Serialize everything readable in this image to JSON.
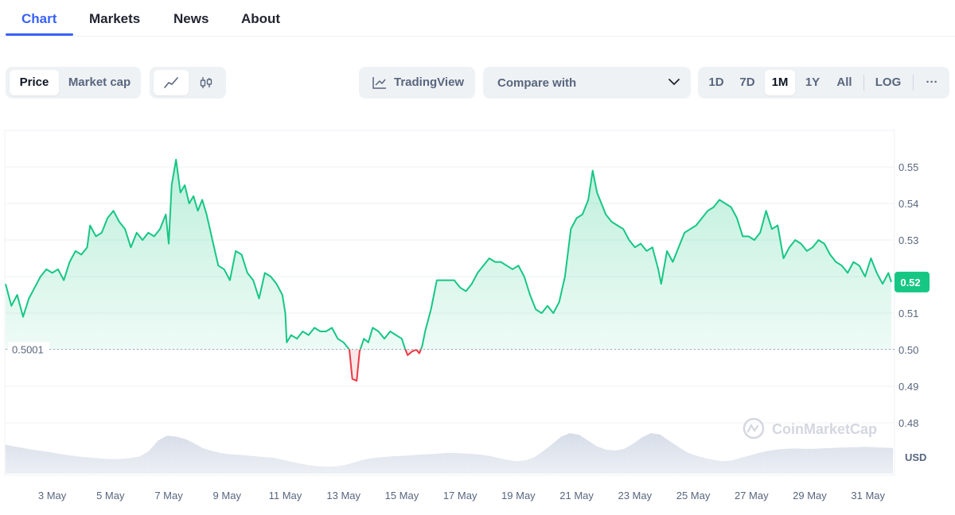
{
  "tabs": [
    {
      "label": "Chart",
      "active": true
    },
    {
      "label": "Markets",
      "active": false
    },
    {
      "label": "News",
      "active": false
    },
    {
      "label": "About",
      "active": false
    }
  ],
  "toolbar": {
    "metric_options": [
      "Price",
      "Market cap"
    ],
    "metric_selected": "Price",
    "chart_type_icons": [
      "line-chart-icon",
      "candlestick-icon"
    ],
    "chart_type_selected": "line-chart-icon",
    "tradingview_label": "TradingView",
    "compare_label": "Compare with",
    "ranges": [
      "1D",
      "7D",
      "1M",
      "1Y",
      "All"
    ],
    "range_selected": "1M",
    "log_label": "LOG",
    "more_label": "···"
  },
  "watermark": "CoinMarketCap",
  "colors": {
    "accent": "#3861fb",
    "up": "#16c784",
    "down": "#ea3943",
    "baseline": "#a1a7bb"
  },
  "chart_data": {
    "type": "area",
    "currency": "USD",
    "baseline_value": 0.5001,
    "baseline_label": "0.5001",
    "current_price_label": "0.52",
    "current_price": 0.5185,
    "ylim": [
      0.475,
      0.56
    ],
    "y_ticks": [
      "0.55",
      "0.54",
      "0.53",
      "0.52",
      "0.51",
      "0.50",
      "0.49",
      "0.48"
    ],
    "x_ticks": [
      "3 May",
      "5 May",
      "7 May",
      "9 May",
      "11 May",
      "13 May",
      "15 May",
      "17 May",
      "19 May",
      "21 May",
      "23 May",
      "25 May",
      "27 May",
      "29 May",
      "31 May"
    ],
    "x_range_days": [
      1.4,
      31.8
    ],
    "series": [
      {
        "values": [
          [
            1.4,
            0.518
          ],
          [
            1.6,
            0.512
          ],
          [
            1.8,
            0.515
          ],
          [
            2.0,
            0.509
          ],
          [
            2.2,
            0.514
          ],
          [
            2.4,
            0.517
          ],
          [
            2.6,
            0.52
          ],
          [
            2.8,
            0.522
          ],
          [
            3.0,
            0.521
          ],
          [
            3.2,
            0.522
          ],
          [
            3.4,
            0.519
          ],
          [
            3.6,
            0.524
          ],
          [
            3.8,
            0.527
          ],
          [
            4.0,
            0.526
          ],
          [
            4.2,
            0.528
          ],
          [
            4.3,
            0.534
          ],
          [
            4.5,
            0.531
          ],
          [
            4.7,
            0.532
          ],
          [
            4.9,
            0.536
          ],
          [
            5.1,
            0.538
          ],
          [
            5.3,
            0.535
          ],
          [
            5.5,
            0.533
          ],
          [
            5.7,
            0.528
          ],
          [
            5.9,
            0.532
          ],
          [
            6.1,
            0.53
          ],
          [
            6.3,
            0.532
          ],
          [
            6.5,
            0.531
          ],
          [
            6.7,
            0.533
          ],
          [
            6.9,
            0.537
          ],
          [
            7.0,
            0.529
          ],
          [
            7.1,
            0.545
          ],
          [
            7.25,
            0.552
          ],
          [
            7.4,
            0.543
          ],
          [
            7.55,
            0.545
          ],
          [
            7.7,
            0.54
          ],
          [
            7.85,
            0.542
          ],
          [
            8.0,
            0.538
          ],
          [
            8.15,
            0.541
          ],
          [
            8.3,
            0.537
          ],
          [
            8.5,
            0.53
          ],
          [
            8.7,
            0.523
          ],
          [
            8.9,
            0.522
          ],
          [
            9.1,
            0.519
          ],
          [
            9.3,
            0.527
          ],
          [
            9.5,
            0.526
          ],
          [
            9.7,
            0.521
          ],
          [
            9.9,
            0.519
          ],
          [
            10.1,
            0.514
          ],
          [
            10.3,
            0.521
          ],
          [
            10.5,
            0.52
          ],
          [
            10.7,
            0.518
          ],
          [
            10.9,
            0.515
          ],
          [
            11.0,
            0.51
          ],
          [
            11.05,
            0.502
          ],
          [
            11.2,
            0.504
          ],
          [
            11.4,
            0.503
          ],
          [
            11.6,
            0.505
          ],
          [
            11.8,
            0.504
          ],
          [
            12.0,
            0.506
          ],
          [
            12.2,
            0.505
          ],
          [
            12.4,
            0.505
          ],
          [
            12.6,
            0.506
          ],
          [
            12.8,
            0.503
          ],
          [
            13.0,
            0.502
          ],
          [
            13.2,
            0.5
          ],
          [
            13.3,
            0.492
          ],
          [
            13.45,
            0.4915
          ],
          [
            13.55,
            0.4995
          ],
          [
            13.7,
            0.503
          ],
          [
            13.85,
            0.502
          ],
          [
            14.0,
            0.506
          ],
          [
            14.2,
            0.505
          ],
          [
            14.4,
            0.503
          ],
          [
            14.6,
            0.505
          ],
          [
            14.8,
            0.504
          ],
          [
            15.0,
            0.503
          ],
          [
            15.1,
            0.5005
          ],
          [
            15.2,
            0.4985
          ],
          [
            15.35,
            0.4995
          ],
          [
            15.5,
            0.5
          ],
          [
            15.6,
            0.499
          ],
          [
            15.7,
            0.501
          ],
          [
            15.8,
            0.505
          ],
          [
            16.0,
            0.511
          ],
          [
            16.2,
            0.519
          ],
          [
            16.4,
            0.519
          ],
          [
            16.6,
            0.519
          ],
          [
            16.8,
            0.519
          ],
          [
            17.0,
            0.517
          ],
          [
            17.2,
            0.516
          ],
          [
            17.4,
            0.518
          ],
          [
            17.6,
            0.521
          ],
          [
            17.8,
            0.523
          ],
          [
            18.0,
            0.525
          ],
          [
            18.2,
            0.524
          ],
          [
            18.4,
            0.524
          ],
          [
            18.6,
            0.523
          ],
          [
            18.8,
            0.522
          ],
          [
            19.0,
            0.523
          ],
          [
            19.2,
            0.52
          ],
          [
            19.4,
            0.515
          ],
          [
            19.6,
            0.511
          ],
          [
            19.8,
            0.51
          ],
          [
            20.0,
            0.512
          ],
          [
            20.2,
            0.51
          ],
          [
            20.4,
            0.513
          ],
          [
            20.6,
            0.52
          ],
          [
            20.8,
            0.533
          ],
          [
            21.0,
            0.536
          ],
          [
            21.2,
            0.537
          ],
          [
            21.4,
            0.541
          ],
          [
            21.55,
            0.549
          ],
          [
            21.7,
            0.543
          ],
          [
            21.85,
            0.54
          ],
          [
            22.0,
            0.537
          ],
          [
            22.2,
            0.535
          ],
          [
            22.4,
            0.534
          ],
          [
            22.6,
            0.533
          ],
          [
            22.8,
            0.53
          ],
          [
            23.0,
            0.528
          ],
          [
            23.2,
            0.529
          ],
          [
            23.4,
            0.527
          ],
          [
            23.6,
            0.528
          ],
          [
            23.8,
            0.522
          ],
          [
            23.9,
            0.518
          ],
          [
            24.1,
            0.527
          ],
          [
            24.3,
            0.524
          ],
          [
            24.5,
            0.528
          ],
          [
            24.7,
            0.532
          ],
          [
            24.9,
            0.533
          ],
          [
            25.1,
            0.534
          ],
          [
            25.3,
            0.536
          ],
          [
            25.5,
            0.538
          ],
          [
            25.7,
            0.539
          ],
          [
            25.9,
            0.541
          ],
          [
            26.1,
            0.54
          ],
          [
            26.3,
            0.539
          ],
          [
            26.5,
            0.536
          ],
          [
            26.7,
            0.531
          ],
          [
            26.9,
            0.531
          ],
          [
            27.1,
            0.53
          ],
          [
            27.3,
            0.532
          ],
          [
            27.5,
            0.538
          ],
          [
            27.7,
            0.533
          ],
          [
            27.9,
            0.534
          ],
          [
            28.1,
            0.525
          ],
          [
            28.3,
            0.528
          ],
          [
            28.5,
            0.53
          ],
          [
            28.7,
            0.529
          ],
          [
            28.9,
            0.527
          ],
          [
            29.1,
            0.528
          ],
          [
            29.3,
            0.53
          ],
          [
            29.5,
            0.529
          ],
          [
            29.7,
            0.526
          ],
          [
            29.9,
            0.524
          ],
          [
            30.1,
            0.523
          ],
          [
            30.3,
            0.521
          ],
          [
            30.5,
            0.524
          ],
          [
            30.7,
            0.523
          ],
          [
            30.9,
            0.52
          ],
          [
            31.1,
            0.525
          ],
          [
            31.3,
            0.521
          ],
          [
            31.5,
            0.518
          ],
          [
            31.7,
            0.521
          ],
          [
            31.8,
            0.5185
          ]
        ]
      }
    ],
    "volume": [
      0.7,
      0.66,
      0.62,
      0.58,
      0.55,
      0.52,
      0.48,
      0.45,
      0.42,
      0.4,
      0.38,
      0.36,
      0.35,
      0.36,
      0.38,
      0.42,
      0.55,
      0.8,
      0.92,
      0.9,
      0.84,
      0.74,
      0.62,
      0.55,
      0.5,
      0.47,
      0.46,
      0.44,
      0.42,
      0.4,
      0.38,
      0.33,
      0.28,
      0.24,
      0.2,
      0.18,
      0.17,
      0.18,
      0.22,
      0.28,
      0.34,
      0.38,
      0.4,
      0.42,
      0.43,
      0.44,
      0.46,
      0.47,
      0.48,
      0.5,
      0.5,
      0.49,
      0.48,
      0.46,
      0.43,
      0.38,
      0.33,
      0.3,
      0.32,
      0.4,
      0.55,
      0.72,
      0.9,
      0.98,
      0.94,
      0.8,
      0.66,
      0.58,
      0.56,
      0.6,
      0.72,
      0.88,
      0.98,
      0.95,
      0.8,
      0.66,
      0.52,
      0.44,
      0.38,
      0.33,
      0.3,
      0.32,
      0.38,
      0.44,
      0.5,
      0.55,
      0.58,
      0.6,
      0.61,
      0.6,
      0.6,
      0.61,
      0.62,
      0.63,
      0.64,
      0.64,
      0.65,
      0.64,
      0.63,
      0.62
    ]
  }
}
